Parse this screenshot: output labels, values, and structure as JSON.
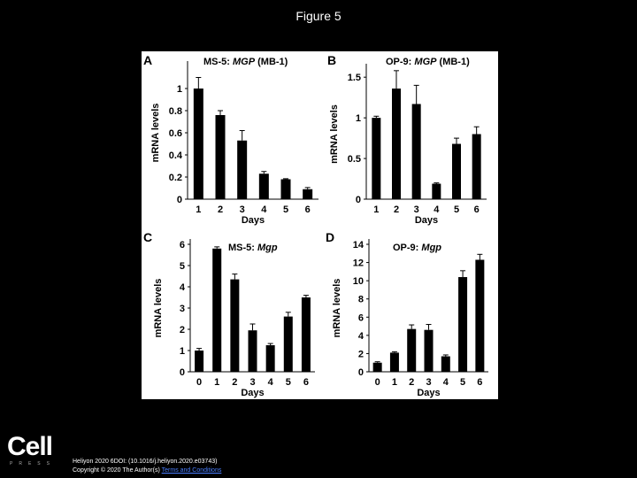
{
  "slide": {
    "title": "Figure 5",
    "citation": "Heliyon 2020 6DOI: (10.1016/j.heliyon.2020.e03743)",
    "copyright": "Copyright © 2020 The Author(s)",
    "license_link": "Terms and Conditions",
    "logo": "Cell",
    "logo_sub": "PRESS"
  },
  "colors": {
    "background": "#000000",
    "panel": "#ffffff",
    "bar": "#000000",
    "link": "#4a7fff"
  },
  "chart_data": [
    {
      "panel": "A",
      "type": "bar",
      "title": "MS-5: MGP (MB-1)",
      "title_italic_part": "MGP",
      "xlabel": "Days",
      "ylabel": "mRNA levels",
      "categories": [
        "1",
        "2",
        "3",
        "4",
        "5",
        "6"
      ],
      "values": [
        1.0,
        0.76,
        0.53,
        0.23,
        0.18,
        0.09
      ],
      "errors": [
        0.1,
        0.04,
        0.09,
        0.02,
        0.005,
        0.015
      ],
      "ylim": [
        0,
        1.2
      ],
      "yticks": [
        "0",
        "0.2",
        "0.4",
        "0.6",
        "0.8",
        "1"
      ],
      "ytick_values": [
        0,
        0.2,
        0.4,
        0.6,
        0.8,
        1.0
      ]
    },
    {
      "panel": "B",
      "type": "bar",
      "title": "OP-9: MGP (MB-1)",
      "title_italic_part": "MGP",
      "xlabel": "Days",
      "ylabel": "mRNA levels",
      "categories": [
        "1",
        "2",
        "3",
        "4",
        "5",
        "6"
      ],
      "values": [
        1.0,
        1.36,
        1.17,
        0.19,
        0.68,
        0.8
      ],
      "errors": [
        0.02,
        0.22,
        0.23,
        0.01,
        0.07,
        0.09
      ],
      "ylim": [
        0,
        1.6
      ],
      "yticks": [
        "0",
        "0.5",
        "1",
        "1.5"
      ],
      "ytick_values": [
        0,
        0.5,
        1.0,
        1.5
      ]
    },
    {
      "panel": "C",
      "type": "bar",
      "title": "MS-5: Mgp",
      "title_italic_part": "Mgp",
      "xlabel": "Days",
      "ylabel": "mRNA levels",
      "categories": [
        "0",
        "1",
        "2",
        "3",
        "4",
        "5",
        "6"
      ],
      "values": [
        1.0,
        5.8,
        4.35,
        1.95,
        1.25,
        2.6,
        3.5
      ],
      "errors": [
        0.1,
        0.08,
        0.25,
        0.3,
        0.08,
        0.2,
        0.1
      ],
      "ylim": [
        0,
        6
      ],
      "yticks": [
        "0",
        "1",
        "2",
        "3",
        "4",
        "5",
        "6"
      ],
      "ytick_values": [
        0,
        1,
        2,
        3,
        4,
        5,
        6
      ]
    },
    {
      "panel": "D",
      "type": "bar",
      "title": "OP-9: Mgp",
      "title_italic_part": "Mgp",
      "xlabel": "Days",
      "ylabel": "mRNA levels",
      "categories": [
        "0",
        "1",
        "2",
        "3",
        "4",
        "5",
        "6"
      ],
      "values": [
        1.0,
        2.1,
        4.7,
        4.6,
        1.7,
        10.4,
        12.3
      ],
      "errors": [
        0.1,
        0.1,
        0.45,
        0.6,
        0.15,
        0.7,
        0.6
      ],
      "ylim": [
        0,
        14
      ],
      "yticks": [
        "0",
        "2",
        "4",
        "6",
        "8",
        "10",
        "12",
        "14"
      ],
      "ytick_values": [
        0,
        2,
        4,
        6,
        8,
        10,
        12,
        14
      ]
    }
  ]
}
